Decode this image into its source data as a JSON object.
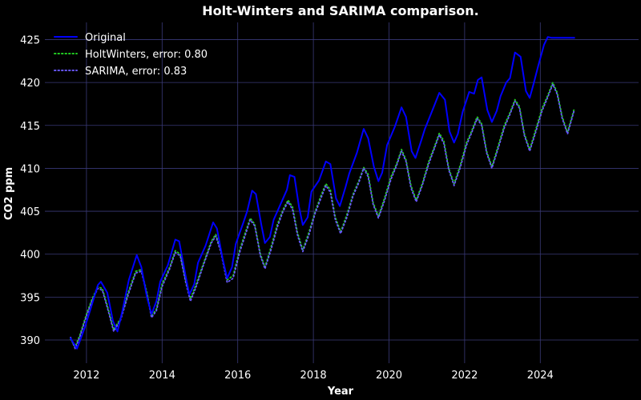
{
  "chart_data": {
    "type": "line",
    "title": "Holt-Winters and SARIMA comparison.",
    "xlabel": "Year",
    "ylabel": "CO2 ppm",
    "xlim": [
      2010.9,
      2026.6
    ],
    "ylim": [
      387.3,
      427.0
    ],
    "xticks": [
      2012,
      2014,
      2016,
      2018,
      2020,
      2022,
      2024
    ],
    "yticks": [
      390,
      395,
      400,
      405,
      410,
      415,
      420,
      425
    ],
    "grid": true,
    "legend_position": "top-left",
    "background_color": "#000000",
    "grid_color": "#3a3a78",
    "series": [
      {
        "name": "Original",
        "color": "#0000ff",
        "style": "solid",
        "x": [
          2011.58,
          2011.75,
          2011.95,
          2012.12,
          2012.3,
          2012.38,
          2012.55,
          2012.7,
          2012.82,
          2012.95,
          2013.12,
          2013.33,
          2013.45,
          2013.6,
          2013.72,
          2013.85,
          2013.95,
          2014.15,
          2014.35,
          2014.45,
          2014.62,
          2014.72,
          2014.85,
          2014.95,
          2015.15,
          2015.35,
          2015.45,
          2015.6,
          2015.72,
          2015.85,
          2015.95,
          2016.15,
          2016.25,
          2016.38,
          2016.48,
          2016.62,
          2016.72,
          2016.85,
          2016.95,
          2017.15,
          2017.3,
          2017.38,
          2017.5,
          2017.62,
          2017.72,
          2017.85,
          2017.95,
          2018.15,
          2018.33,
          2018.45,
          2018.6,
          2018.7,
          2018.85,
          2018.95,
          2019.15,
          2019.33,
          2019.45,
          2019.6,
          2019.72,
          2019.82,
          2019.95,
          2020.15,
          2020.33,
          2020.45,
          2020.6,
          2020.7,
          2020.85,
          2020.95,
          2021.15,
          2021.33,
          2021.48,
          2021.6,
          2021.72,
          2021.82,
          2021.95,
          2022.12,
          2022.25,
          2022.35,
          2022.45,
          2022.6,
          2022.72,
          2022.85,
          2022.95,
          2023.1,
          2023.2,
          2023.33,
          2023.48,
          2023.62,
          2023.72,
          2023.82,
          2023.95,
          2024.1,
          2024.2,
          2024.3,
          2024.5,
          2024.7,
          2024.9
        ],
        "y": [
          390.2,
          389.0,
          391.4,
          393.8,
          396.4,
          396.8,
          395.5,
          392.2,
          391.0,
          393.4,
          397.0,
          399.9,
          398.5,
          395.0,
          393.0,
          394.5,
          396.8,
          398.7,
          401.7,
          401.5,
          397.5,
          395.3,
          396.5,
          399.0,
          401.0,
          403.7,
          403.0,
          399.5,
          397.2,
          398.5,
          401.2,
          403.7,
          405.0,
          407.4,
          407.0,
          403.5,
          401.3,
          402.0,
          404.0,
          406.0,
          407.5,
          409.2,
          409.0,
          405.5,
          403.4,
          404.3,
          407.3,
          408.6,
          410.8,
          410.5,
          406.5,
          405.6,
          407.8,
          409.4,
          411.8,
          414.6,
          413.5,
          410.2,
          408.5,
          409.5,
          412.7,
          414.8,
          417.1,
          416.0,
          412.0,
          411.2,
          413.2,
          414.6,
          416.8,
          418.8,
          418.0,
          414.3,
          413.0,
          414.0,
          416.6,
          418.9,
          418.7,
          420.3,
          420.6,
          416.8,
          415.4,
          416.7,
          418.4,
          420.0,
          420.5,
          423.5,
          423.0,
          419.0,
          418.2,
          419.8,
          422.0,
          424.4,
          425.3,
          425.2,
          425.2,
          425.2,
          425.2
        ]
      },
      {
        "name": "HoltWinters, error: 0.80",
        "color": "#22cc22",
        "style": "dotted",
        "x": [
          2011.58,
          2011.7,
          2011.82,
          2012.0,
          2012.15,
          2012.3,
          2012.42,
          2012.55,
          2012.72,
          2012.9,
          2013.1,
          2013.3,
          2013.45,
          2013.6,
          2013.72,
          2013.85,
          2014.0,
          2014.2,
          2014.35,
          2014.48,
          2014.62,
          2014.75,
          2014.9,
          2015.1,
          2015.3,
          2015.42,
          2015.55,
          2015.72,
          2015.88,
          2016.05,
          2016.2,
          2016.33,
          2016.45,
          2016.6,
          2016.72,
          2016.88,
          2017.05,
          2017.2,
          2017.33,
          2017.45,
          2017.58,
          2017.72,
          2017.88,
          2018.05,
          2018.2,
          2018.33,
          2018.45,
          2018.58,
          2018.72,
          2018.88,
          2019.05,
          2019.2,
          2019.33,
          2019.45,
          2019.58,
          2019.72,
          2019.88,
          2020.05,
          2020.2,
          2020.33,
          2020.45,
          2020.58,
          2020.72,
          2020.88,
          2021.05,
          2021.2,
          2021.33,
          2021.45,
          2021.58,
          2021.72,
          2021.88,
          2022.05,
          2022.2,
          2022.33,
          2022.45,
          2022.58,
          2022.72,
          2022.88,
          2023.05,
          2023.2,
          2023.33,
          2023.45,
          2023.58,
          2023.72,
          2023.88,
          2024.05,
          2024.2,
          2024.33,
          2024.45,
          2024.58,
          2024.72,
          2024.9
        ],
        "y": [
          390.1,
          389.2,
          390.5,
          393.0,
          394.8,
          396.2,
          396.0,
          394.0,
          391.2,
          392.5,
          395.5,
          398.0,
          398.2,
          395.5,
          392.8,
          393.6,
          396.5,
          398.5,
          400.4,
          400.0,
          397.0,
          394.8,
          396.5,
          399.0,
          401.5,
          402.3,
          400.5,
          397.0,
          397.5,
          400.5,
          402.5,
          404.2,
          403.5,
          400.0,
          398.5,
          400.8,
          403.5,
          405.2,
          406.3,
          405.5,
          402.5,
          400.5,
          402.5,
          405.0,
          406.8,
          408.2,
          407.5,
          404.3,
          402.6,
          404.5,
          407.0,
          408.5,
          410.1,
          409.3,
          406.0,
          404.4,
          406.5,
          409.0,
          410.5,
          412.2,
          411.0,
          408.0,
          406.3,
          408.2,
          410.8,
          412.5,
          414.1,
          413.2,
          410.0,
          408.2,
          410.3,
          413.0,
          414.5,
          416.0,
          415.2,
          412.0,
          410.2,
          412.5,
          415.0,
          416.5,
          418.0,
          417.2,
          414.0,
          412.2,
          414.5,
          417.0,
          418.5,
          420.0,
          418.8,
          416.0,
          414.2,
          417.0
        ]
      },
      {
        "name": "SARIMA, error: 0.83",
        "color": "#6655ff",
        "style": "dotted",
        "x": [
          2011.58,
          2011.7,
          2011.82,
          2012.0,
          2012.15,
          2012.3,
          2012.42,
          2012.55,
          2012.72,
          2012.9,
          2013.1,
          2013.3,
          2013.45,
          2013.6,
          2013.72,
          2013.85,
          2014.0,
          2014.2,
          2014.35,
          2014.48,
          2014.62,
          2014.75,
          2014.9,
          2015.1,
          2015.3,
          2015.42,
          2015.55,
          2015.72,
          2015.88,
          2016.05,
          2016.2,
          2016.33,
          2016.45,
          2016.6,
          2016.72,
          2016.88,
          2017.05,
          2017.2,
          2017.33,
          2017.45,
          2017.58,
          2017.72,
          2017.88,
          2018.05,
          2018.2,
          2018.33,
          2018.45,
          2018.58,
          2018.72,
          2018.88,
          2019.05,
          2019.2,
          2019.33,
          2019.45,
          2019.58,
          2019.72,
          2019.88,
          2020.05,
          2020.2,
          2020.33,
          2020.45,
          2020.58,
          2020.72,
          2020.88,
          2021.05,
          2021.2,
          2021.33,
          2021.45,
          2021.58,
          2021.72,
          2021.88,
          2022.05,
          2022.2,
          2022.33,
          2022.45,
          2022.58,
          2022.72,
          2022.88,
          2023.05,
          2023.2,
          2023.33,
          2023.45,
          2023.58,
          2023.72,
          2023.88,
          2024.05,
          2024.2,
          2024.33,
          2024.45,
          2024.58,
          2024.72,
          2024.9
        ],
        "y": [
          390.3,
          389.0,
          390.3,
          392.8,
          394.6,
          396.0,
          395.8,
          393.8,
          391.0,
          392.3,
          395.2,
          397.8,
          398.0,
          395.3,
          392.6,
          393.4,
          396.2,
          398.3,
          400.2,
          399.8,
          396.8,
          394.5,
          396.2,
          398.8,
          401.3,
          402.1,
          400.3,
          396.7,
          397.2,
          400.2,
          402.2,
          404.0,
          403.3,
          399.8,
          398.3,
          400.5,
          403.2,
          405.0,
          406.1,
          405.2,
          402.2,
          400.3,
          402.2,
          404.8,
          406.5,
          408.0,
          407.2,
          404.0,
          402.4,
          404.2,
          406.8,
          408.3,
          410.0,
          409.0,
          405.8,
          404.2,
          406.2,
          408.7,
          410.3,
          412.0,
          410.8,
          407.7,
          406.1,
          408.0,
          410.5,
          412.3,
          413.9,
          412.9,
          409.8,
          408.0,
          410.0,
          412.7,
          414.3,
          415.8,
          415.0,
          411.8,
          410.0,
          412.2,
          414.7,
          416.3,
          417.8,
          417.0,
          413.8,
          412.0,
          414.2,
          416.7,
          418.3,
          419.8,
          418.6,
          415.8,
          414.0,
          416.8
        ]
      }
    ]
  }
}
